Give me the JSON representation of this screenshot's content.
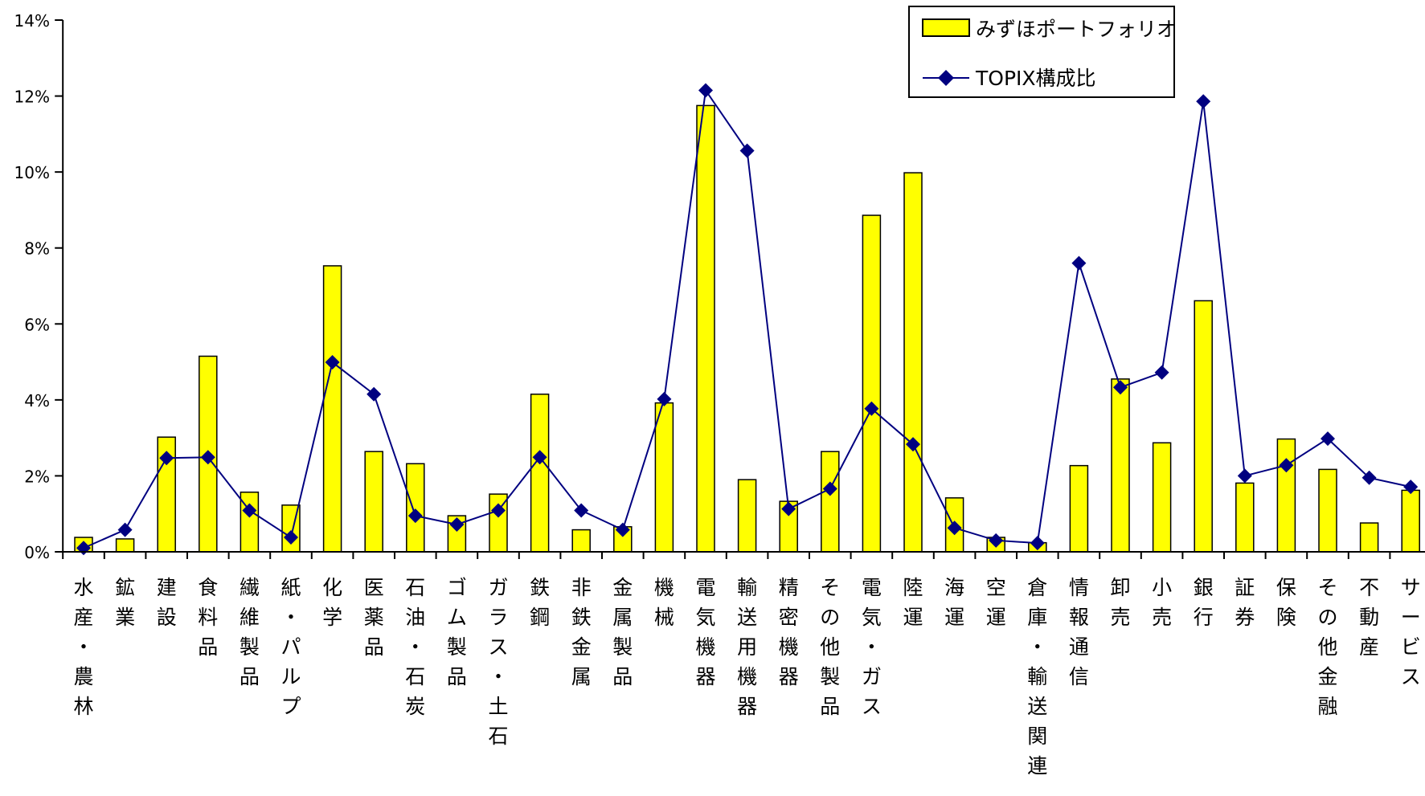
{
  "chart_data": {
    "type": "bar+line",
    "title": "",
    "xlabel": "",
    "ylabel": "",
    "ylim": [
      0,
      14
    ],
    "ytick_values": [
      0,
      2,
      4,
      6,
      8,
      10,
      12,
      14
    ],
    "ytick_labels": [
      "0%",
      "2%",
      "4%",
      "6%",
      "8%",
      "10%",
      "12%",
      "14%"
    ],
    "legend_position": "top-right",
    "categories": [
      "水産・農林",
      "鉱業",
      "建設",
      "食料品",
      "繊維製品",
      "紙・パルプ",
      "化学",
      "医薬品",
      "石油・石炭",
      "ゴム製品",
      "ガラス・土石",
      "鉄鋼",
      "非鉄金属",
      "金属製品",
      "機械",
      "電気機器",
      "輸送用機器",
      "精密機器",
      "その他製品",
      "電気・ガス",
      "陸運",
      "海運",
      "空運",
      "倉庫・輸送関連",
      "情報通信",
      "卸売",
      "小売",
      "銀行",
      "証券",
      "保険",
      "その他金融",
      "不動産",
      "サービス"
    ],
    "series": [
      {
        "name": "みずほポートフォリオ",
        "type": "bar",
        "color": "#FFFF00",
        "values": [
          0.38,
          0.34,
          3.02,
          5.15,
          1.57,
          1.23,
          7.53,
          2.64,
          2.32,
          0.95,
          1.52,
          4.15,
          0.58,
          0.66,
          3.92,
          11.75,
          1.9,
          1.33,
          2.64,
          8.86,
          9.98,
          1.42,
          0.38,
          0.24,
          2.27,
          4.55,
          2.87,
          6.61,
          1.81,
          2.97,
          2.17,
          0.76,
          1.62
        ]
      },
      {
        "name": "TOPIX構成比",
        "type": "line",
        "color": "#000080",
        "values": [
          0.1,
          0.58,
          2.47,
          2.49,
          1.09,
          0.38,
          4.99,
          4.15,
          0.95,
          0.72,
          1.09,
          2.49,
          1.09,
          0.58,
          4.02,
          12.15,
          10.56,
          1.13,
          1.66,
          3.77,
          2.83,
          0.63,
          0.3,
          0.23,
          7.6,
          4.33,
          4.72,
          11.86,
          2.0,
          2.28,
          2.98,
          1.95,
          1.71
        ]
      }
    ]
  }
}
